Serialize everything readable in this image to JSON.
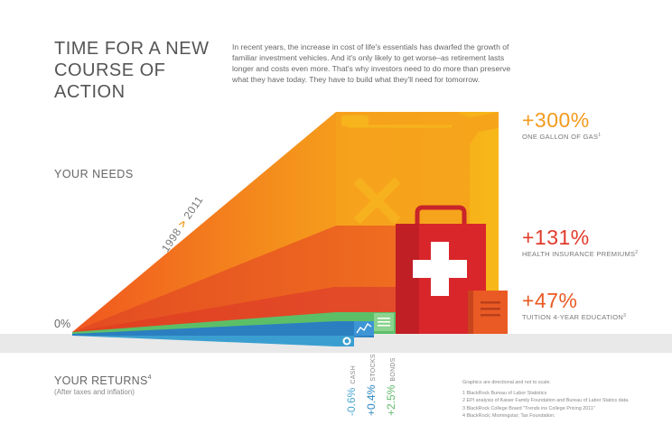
{
  "title_lines": [
    "TIME FOR A NEW",
    "COURSE OF ACTION"
  ],
  "intro_text": "In recent years, the increase in cost of life's essentials has dwarfed the growth of familiar investment vehicles.  And it's only likely to get worse–as retirement lasts longer and costs even more. That's why investors need to do more than preserve what they have today. They have to build what they'll need for tomorrow.",
  "labels": {
    "needs": "YOUR NEEDS",
    "zero": "0%",
    "returns": "YOUR RETURNS",
    "returns_note_ref": "4",
    "returns_sub": "(After taxes and inflation)",
    "year_start": "1998",
    "year_arrow": ">",
    "year_end": "2011"
  },
  "needs": [
    {
      "value": "+300%",
      "label": "ONE GALLON OF GAS",
      "note": "1",
      "icon": "gas-can-icon",
      "color": "#f39a1d"
    },
    {
      "value": "+131%",
      "label": "HEALTH INSURANCE PREMIUMS",
      "note": "2",
      "icon": "first-aid-kit-icon",
      "color": "#e23a2b"
    },
    {
      "value": "+47%",
      "label": "TUITION 4-YEAR EDUCATION",
      "note": "3",
      "icon": "book-icon",
      "color": "#e85a22"
    }
  ],
  "returns": [
    {
      "value": "-0.6%",
      "label": "CASH",
      "icon": "coin-icon",
      "color": "#4aa6cf"
    },
    {
      "value": "+0.4%",
      "label": "STOCKS",
      "icon": "stock-chart-icon",
      "color": "#2c86c2"
    },
    {
      "value": "+2.5%",
      "label": "BONDS",
      "icon": "bond-document-icon",
      "color": "#5fb86a"
    }
  ],
  "notes": [
    "Graphics are directional and not to scale.",
    "1 BlackRock Bureau of Labor Statistics",
    "2 EPI analysis of Kaiser Family Foundation and Bureau of Labor Statics data.",
    "3 BlackRock College Board \"Trends ins College Pricing 2011\"",
    "4 BlackRock; Morningstar; Tax Foundation."
  ]
}
